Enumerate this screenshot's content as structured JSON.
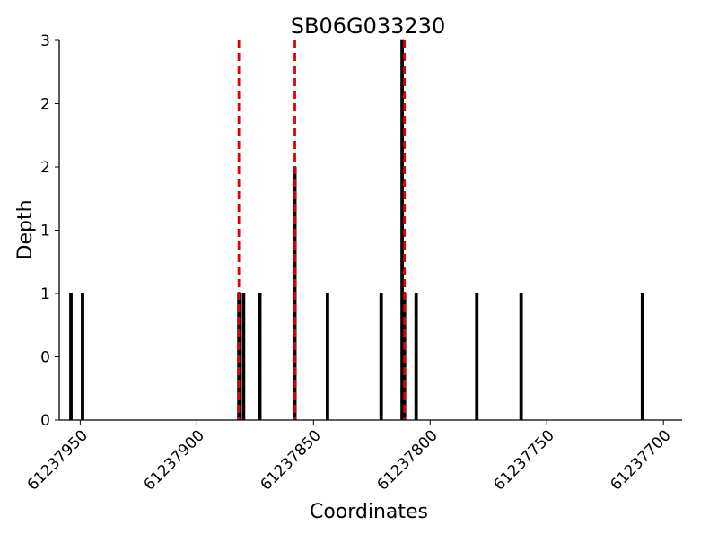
{
  "chart_data": {
    "type": "bar",
    "title": "SB06G033230",
    "xlabel": "Coordinates",
    "ylabel": "Depth",
    "x_axis_reversed": true,
    "xlim": [
      61237959,
      61237692
    ],
    "ylim": [
      0,
      3
    ],
    "x_ticks": [
      61237950,
      61237900,
      61237850,
      61237800,
      61237750,
      61237700
    ],
    "x_tick_labels": [
      "61237950",
      "61237900",
      "61237850",
      "61237800",
      "61237750",
      "61237700"
    ],
    "y_ticks": [
      0,
      0.5,
      1,
      1.5,
      2,
      2.5,
      3
    ],
    "y_tick_labels": [
      "0",
      "0",
      "1",
      "1",
      "2",
      "2",
      "3"
    ],
    "grid": false,
    "colors": {
      "bars": "#000000",
      "markers": "#e00000"
    },
    "series": [
      {
        "x": [
          61237954,
          61237949,
          61237882,
          61237880,
          61237873,
          61237844,
          61237821,
          61237811,
          61237806,
          61237780,
          61237761,
          61237709,
          61237858,
          61237812
        ],
        "values": [
          1,
          1,
          1,
          1,
          1,
          1,
          1,
          1,
          1,
          1,
          1,
          1,
          2,
          3
        ]
      }
    ],
    "vertical_markers": {
      "style": "dashed",
      "color": "#e00000",
      "x": [
        61237882,
        61237858,
        61237811
      ]
    }
  }
}
